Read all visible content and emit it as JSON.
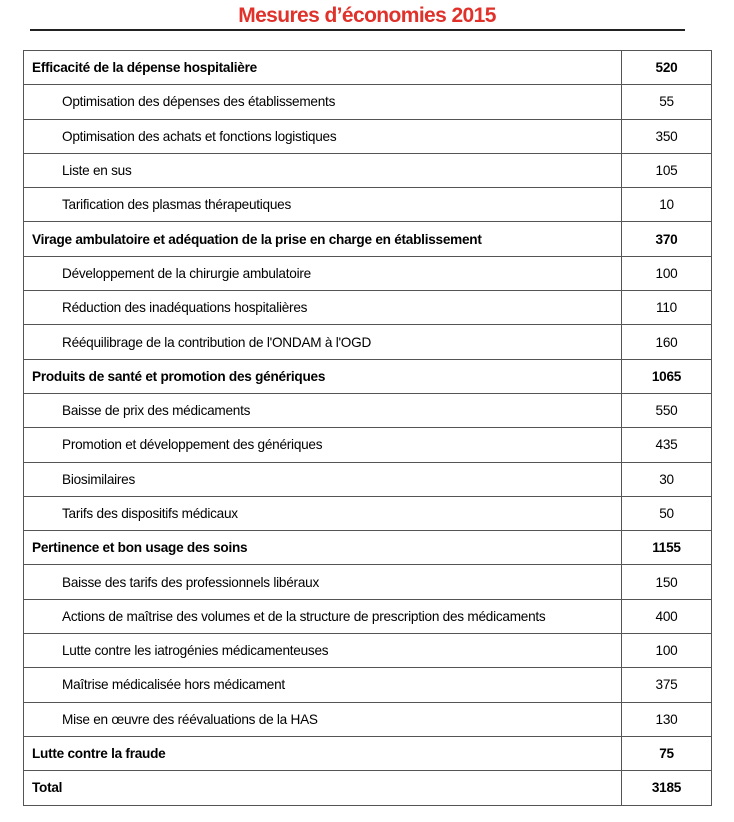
{
  "title": "Mesures d’économies 2015",
  "rows": [
    {
      "label": "Efficacité de la dépense hospitalière",
      "value": "520",
      "type": "category"
    },
    {
      "label": "Optimisation des dépenses des établissements",
      "value": "55",
      "type": "item"
    },
    {
      "label": "Optimisation des achats et fonctions logistiques",
      "value": "350",
      "type": "item"
    },
    {
      "label": "Liste en sus",
      "value": "105",
      "type": "item"
    },
    {
      "label": "Tarification des plasmas thérapeutiques",
      "value": "10",
      "type": "item"
    },
    {
      "label": "Virage ambulatoire et adéquation de la prise en charge en établissement",
      "value": "370",
      "type": "category"
    },
    {
      "label": "Développement de la chirurgie ambulatoire",
      "value": "100",
      "type": "item"
    },
    {
      "label": "Réduction des inadéquations hospitalières",
      "value": "110",
      "type": "item"
    },
    {
      "label": "Rééquilibrage de la contribution de l'ONDAM à l'OGD",
      "value": "160",
      "type": "item"
    },
    {
      "label": "Produits de santé et promotion des génériques",
      "value": "1065",
      "type": "category"
    },
    {
      "label": "Baisse de prix des médicaments",
      "value": "550",
      "type": "item"
    },
    {
      "label": "Promotion et développement des génériques",
      "value": "435",
      "type": "item"
    },
    {
      "label": "Biosimilaires",
      "value": "30",
      "type": "item"
    },
    {
      "label": "Tarifs des dispositifs médicaux",
      "value": "50",
      "type": "item"
    },
    {
      "label": "Pertinence et bon usage des soins",
      "value": "1155",
      "type": "category"
    },
    {
      "label": "Baisse des tarifs des professionnels libéraux",
      "value": "150",
      "type": "item"
    },
    {
      "label": "Actions de maîtrise des volumes et de la structure de prescription des médicaments",
      "value": "400",
      "type": "item"
    },
    {
      "label": "Lutte contre les iatrogénies médicamenteuses",
      "value": "100",
      "type": "item"
    },
    {
      "label": "Maîtrise médicalisée hors médicament",
      "value": "375",
      "type": "item"
    },
    {
      "label": "Mise en œuvre des réévaluations de la HAS",
      "value": "130",
      "type": "item"
    },
    {
      "label": "Lutte contre la fraude",
      "value": "75",
      "type": "category"
    },
    {
      "label": "Total",
      "value": "3185",
      "type": "category"
    }
  ],
  "colors": {
    "title": "#e0312a"
  }
}
